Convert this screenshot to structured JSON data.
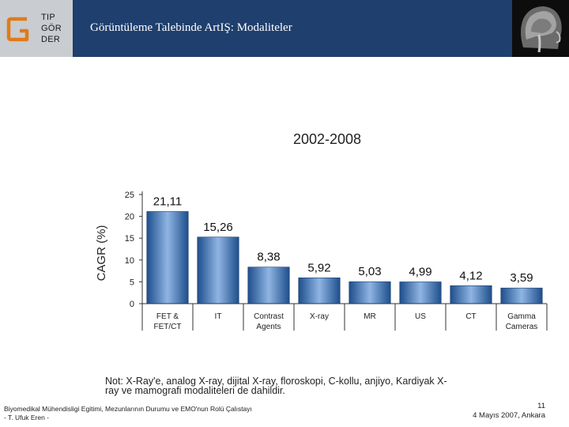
{
  "header": {
    "logo_lines": [
      "TIP",
      "GÖR",
      "DER"
    ],
    "title": "Görüntüleme Talebinde ArtIŞ: Modaliteler"
  },
  "chart_data": {
    "type": "bar",
    "title": "2002-2008",
    "ylabel": "CAGR (%)",
    "xlabel": "",
    "ylim": [
      0,
      25
    ],
    "yticks": [
      0,
      5,
      10,
      15,
      20,
      25
    ],
    "categories": [
      [
        "FET &",
        "FET/CT"
      ],
      [
        "IT"
      ],
      [
        "Contrast",
        "Agents"
      ],
      [
        "X-ray"
      ],
      [
        "MR"
      ],
      [
        "US"
      ],
      [
        "CT"
      ],
      [
        "Gamma",
        "Cameras"
      ]
    ],
    "values": [
      21.11,
      15.26,
      8.38,
      5.92,
      5.03,
      4.99,
      4.12,
      3.59
    ],
    "value_labels": [
      "21,11",
      "15,26",
      "8,38",
      "5,92",
      "5,03",
      "4,99",
      "4,12",
      "3,59"
    ],
    "grid": false,
    "bar_color": "#4a7fc1"
  },
  "note": "Not: X-Ray'e, analog X-ray, dijital X-ray, floroskopi, C-kollu, anjiyo, Kardiyak X-ray ve mamografi modaliteleri de dahildir.",
  "footer": {
    "left_line1": "Biyomedikal Mühendisligi Egitimi, Mezunlarının Durumu ve EMO'nun Rolü Çalıstayı",
    "left_line2": "- T. Ufuk Eren -",
    "page_number": "11",
    "date_place": "4 Mayıs 2007, Ankara"
  }
}
